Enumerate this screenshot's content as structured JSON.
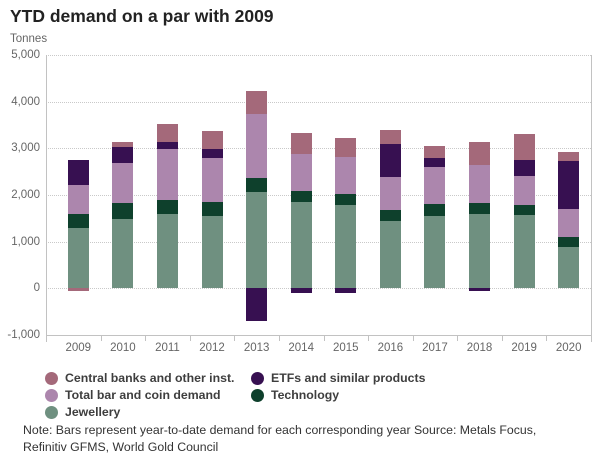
{
  "header": {
    "title": "YTD demand on a par with 2009",
    "unit_label": "Tonnes"
  },
  "chart_data": {
    "type": "bar",
    "stacked": true,
    "title": "YTD demand on a par with 2009",
    "ylabel": "Tonnes",
    "xlabel": "",
    "ylim": [
      -1000,
      5000
    ],
    "ytick_interval": 1000,
    "grid": "horizontal-dotted",
    "legend_position": "bottom",
    "categories": [
      "2009",
      "2010",
      "2011",
      "2012",
      "2013",
      "2014",
      "2015",
      "2016",
      "2017",
      "2018",
      "2019",
      "2020"
    ],
    "series": [
      {
        "name": "Jewellery",
        "color": "#6f9080",
        "values": [
          1300,
          1480,
          1590,
          1560,
          2070,
          1840,
          1780,
          1440,
          1560,
          1600,
          1580,
          880
        ]
      },
      {
        "name": "Technology",
        "color": "#0e402c",
        "values": [
          290,
          340,
          300,
          300,
          290,
          250,
          240,
          240,
          250,
          220,
          200,
          230
        ]
      },
      {
        "name": "Total bar and coin demand",
        "color": "#ac86ad",
        "values": [
          630,
          870,
          1100,
          930,
          1370,
          790,
          800,
          700,
          780,
          820,
          620,
          600
        ]
      },
      {
        "name": "ETFs and similar products",
        "color": "#371051",
        "values": [
          540,
          340,
          150,
          190,
          -710,
          -90,
          -90,
          710,
          210,
          -50,
          350,
          1020
        ]
      },
      {
        "name": "Central banks and other inst.",
        "color": "#a4697a",
        "values": [
          -60,
          110,
          390,
          390,
          490,
          440,
          410,
          300,
          260,
          500,
          550,
          200
        ]
      }
    ],
    "y_ticks": [
      {
        "value": 5000,
        "label": "5,000"
      },
      {
        "value": 4000,
        "label": "4,000"
      },
      {
        "value": 3000,
        "label": "3,000"
      },
      {
        "value": 2000,
        "label": "2,000"
      },
      {
        "value": 1000,
        "label": "1,000"
      },
      {
        "value": 0,
        "label": "0"
      },
      {
        "value": -1000,
        "label": "-1,000"
      }
    ]
  },
  "legend": {
    "items": [
      {
        "label": "Central banks and other inst.",
        "color": "#a4697a"
      },
      {
        "label": "ETFs and similar products",
        "color": "#371051"
      },
      {
        "label": "Total bar and coin demand",
        "color": "#ac86ad"
      },
      {
        "label": "Technology",
        "color": "#0e402c"
      },
      {
        "label": "Jewellery",
        "color": "#6f9080"
      }
    ]
  },
  "note": {
    "text": "Note: Bars represent year-to-date demand for each corresponding year Source: Metals Focus, Refinitiv GFMS, World Gold Council"
  }
}
